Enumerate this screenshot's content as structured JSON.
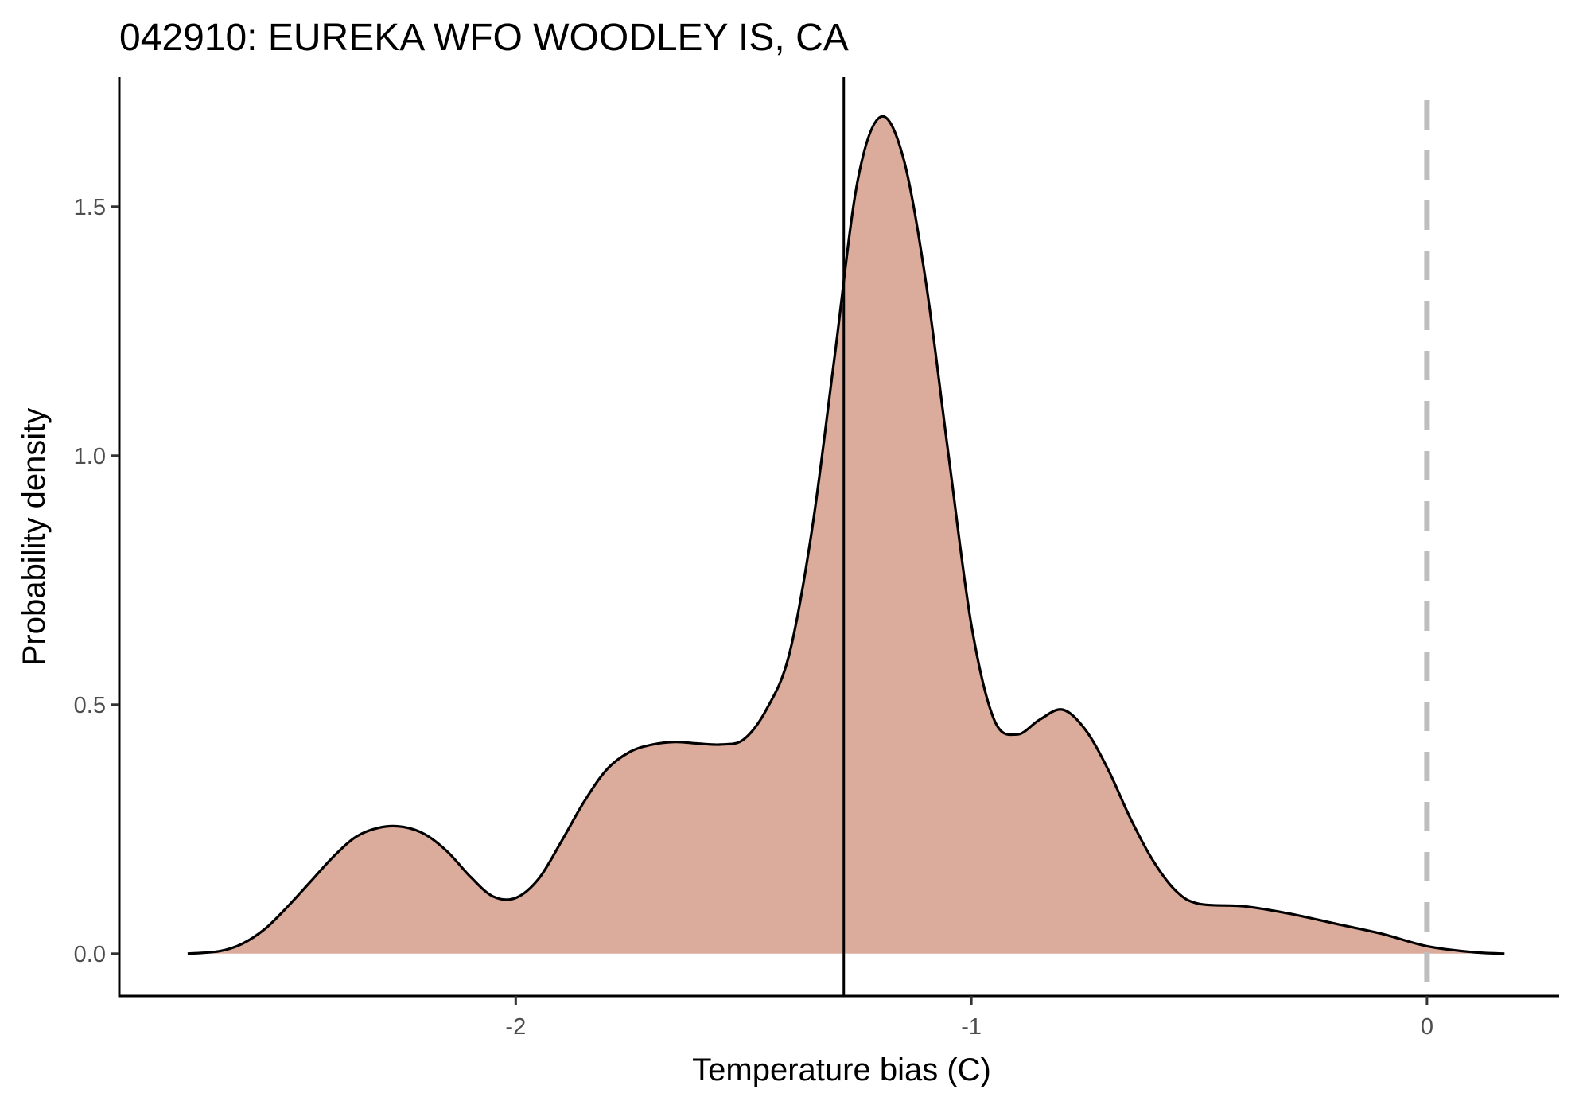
{
  "chart_data": {
    "type": "area",
    "title": "042910: EUREKA WFO WOODLEY IS, CA",
    "xlabel": "Temperature bias (C)",
    "ylabel": "Probability density",
    "xlim": [
      -2.87,
      0.29
    ],
    "ylim": [
      -0.085,
      1.76
    ],
    "xticks": [
      {
        "value": -2,
        "label": "-2"
      },
      {
        "value": -1,
        "label": "-1"
      },
      {
        "value": 0,
        "label": "0"
      }
    ],
    "yticks": [
      {
        "value": 0.0,
        "label": "0.0"
      },
      {
        "value": 0.5,
        "label": "0.5"
      },
      {
        "value": 1.0,
        "label": "1.0"
      },
      {
        "value": 1.5,
        "label": "1.5"
      }
    ],
    "grid": false,
    "fill_color": "#dbab9b",
    "line_color": "#000000",
    "density": {
      "x": [
        -2.72,
        -2.65,
        -2.6,
        -2.55,
        -2.5,
        -2.45,
        -2.4,
        -2.35,
        -2.3,
        -2.25,
        -2.2,
        -2.15,
        -2.1,
        -2.05,
        -2.0,
        -1.95,
        -1.9,
        -1.85,
        -1.8,
        -1.75,
        -1.7,
        -1.65,
        -1.6,
        -1.55,
        -1.5,
        -1.45,
        -1.4,
        -1.35,
        -1.3,
        -1.25,
        -1.2,
        -1.15,
        -1.1,
        -1.05,
        -1.0,
        -0.95,
        -0.9,
        -0.85,
        -0.8,
        -0.75,
        -0.7,
        -0.65,
        -0.6,
        -0.55,
        -0.5,
        -0.4,
        -0.3,
        -0.2,
        -0.1,
        0.0,
        0.1,
        0.17
      ],
      "y": [
        0.0,
        0.005,
        0.02,
        0.05,
        0.095,
        0.145,
        0.195,
        0.235,
        0.253,
        0.255,
        0.24,
        0.205,
        0.155,
        0.115,
        0.112,
        0.15,
        0.225,
        0.305,
        0.37,
        0.405,
        0.42,
        0.425,
        0.422,
        0.42,
        0.43,
        0.49,
        0.6,
        0.85,
        1.2,
        1.55,
        1.68,
        1.6,
        1.35,
        1.0,
        0.66,
        0.47,
        0.44,
        0.47,
        0.49,
        0.45,
        0.37,
        0.27,
        0.185,
        0.125,
        0.1,
        0.095,
        0.08,
        0.06,
        0.04,
        0.015,
        0.003,
        0.0
      ]
    },
    "vertical_lines": [
      {
        "x": -1.28,
        "style": "solid",
        "color": "#000000"
      },
      {
        "x": 0.0,
        "style": "dashed",
        "color": "#bebebe"
      }
    ]
  }
}
